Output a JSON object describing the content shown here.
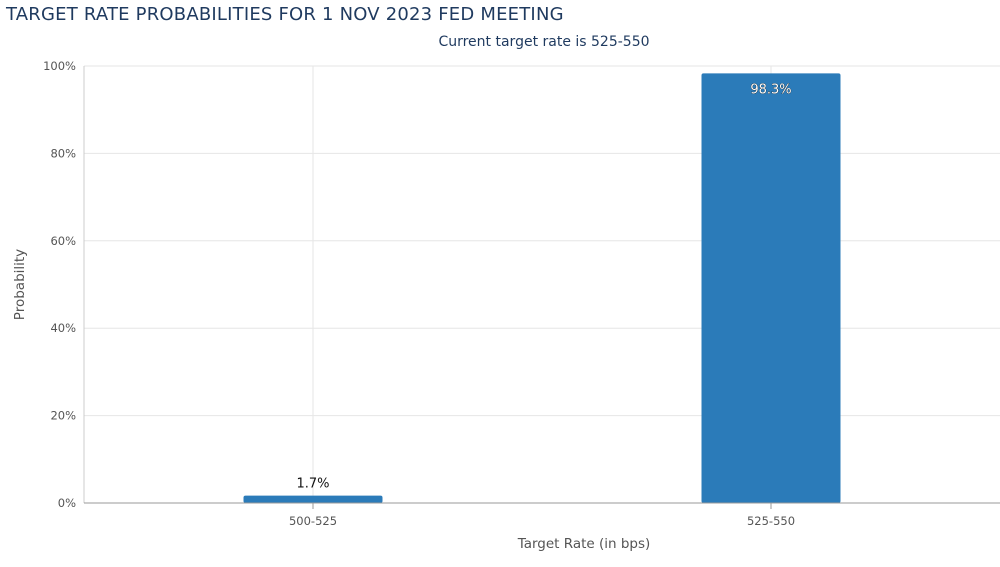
{
  "title": "TARGET RATE PROBABILITIES FOR 1 NOV 2023 FED MEETING",
  "subtitle": "Current target rate is 525-550",
  "colors": {
    "bar": "#2b7bb9",
    "grid": "#e6e6e6",
    "title": "#1f3a5f"
  },
  "chart_data": {
    "type": "bar",
    "title": "TARGET RATE PROBABILITIES FOR 1 NOV 2023 FED MEETING",
    "subtitle": "Current target rate is 525-550",
    "xlabel": "Target Rate (in bps)",
    "ylabel": "Probability",
    "categories": [
      "500-525",
      "525-550"
    ],
    "values": [
      1.7,
      98.3
    ],
    "data_labels": [
      "1.7%",
      "98.3%"
    ],
    "ylim": [
      0,
      100
    ],
    "yticks": [
      0,
      20,
      40,
      60,
      80,
      100
    ],
    "ytick_labels": [
      "0%",
      "20%",
      "40%",
      "60%",
      "80%",
      "100%"
    ],
    "grid": true,
    "legend": "none"
  }
}
